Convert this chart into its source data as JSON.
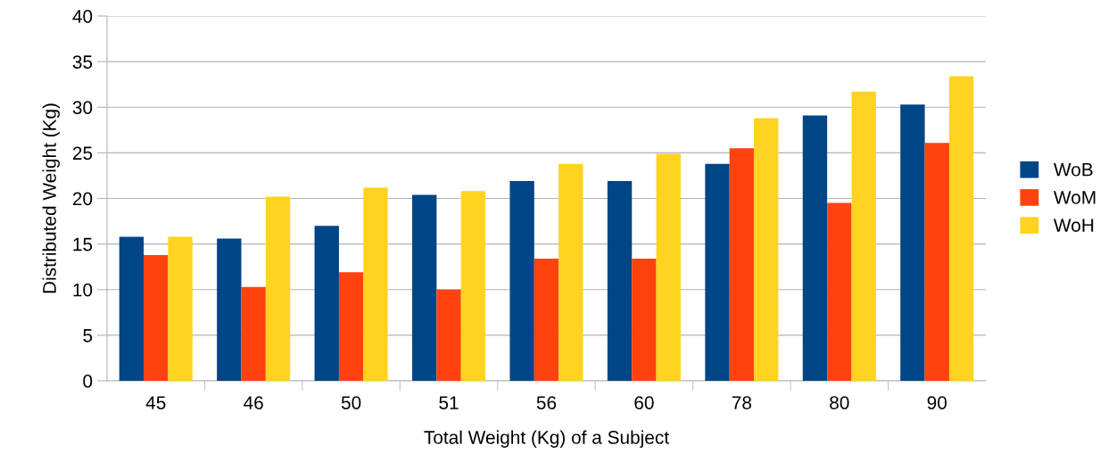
{
  "chart_data": {
    "type": "bar",
    "xlabel": "Total Weight (Kg) of a Subject",
    "ylabel": "Distributed Weight (Kg)",
    "categories": [
      "45",
      "46",
      "50",
      "51",
      "56",
      "60",
      "78",
      "80",
      "90"
    ],
    "series": [
      {
        "name": "WoB",
        "color": "#004586",
        "values": [
          15.8,
          15.6,
          17.0,
          20.4,
          21.9,
          21.9,
          23.8,
          29.1,
          30.3
        ]
      },
      {
        "name": "WoM",
        "color": "#ff420e",
        "values": [
          13.8,
          10.3,
          11.9,
          10.0,
          13.4,
          13.4,
          25.5,
          19.5,
          26.1
        ]
      },
      {
        "name": "WoH",
        "color": "#ffd320",
        "values": [
          15.8,
          20.2,
          21.2,
          20.8,
          23.8,
          24.9,
          28.8,
          31.7,
          33.4
        ]
      }
    ],
    "ylim": [
      0,
      40
    ],
    "yticks": [
      0,
      5,
      10,
      15,
      20,
      25,
      30,
      35,
      40
    ],
    "grid": "y",
    "legend": "right"
  }
}
